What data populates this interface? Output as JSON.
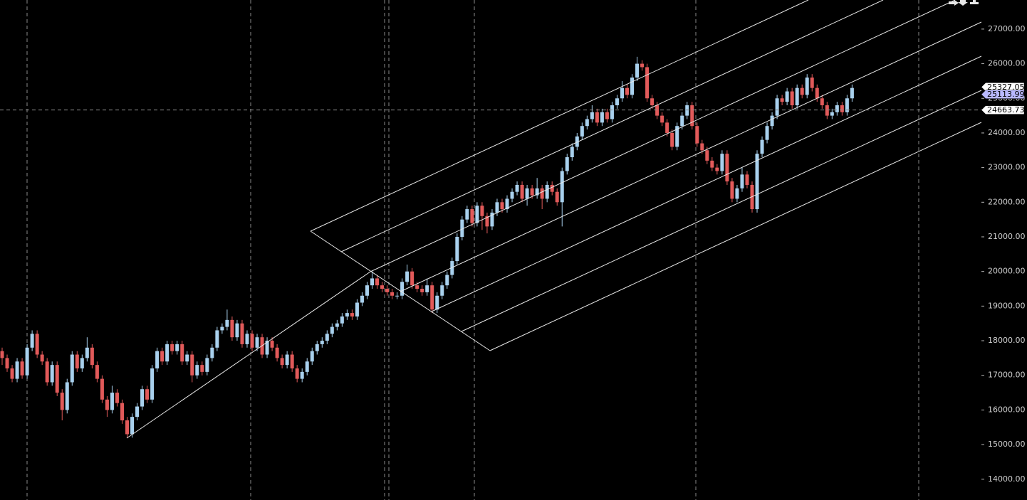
{
  "chart_data": {
    "type": "candlestick",
    "open": [
      17700,
      17500,
      17200,
      16900,
      17400,
      17000,
      17800,
      18200,
      17600,
      17400,
      16800,
      17300,
      16500,
      16000,
      16800,
      17600,
      17200,
      17500,
      17800,
      17300,
      16900,
      16300,
      16000,
      16500,
      16200,
      15700,
      15300,
      15800,
      16100,
      16600,
      16300,
      17200,
      17700,
      17400,
      17900,
      17700,
      17900,
      17400,
      17600,
      17000,
      17300,
      17100,
      17500,
      17800,
      18300,
      18400,
      18600,
      18100,
      18500,
      17900,
      18200,
      17800,
      18100,
      17600,
      18000,
      17800,
      17500,
      17300,
      17600,
      17200,
      16900,
      17100,
      17400,
      17700,
      17900,
      18000,
      18200,
      18400,
      18500,
      18700,
      18800,
      18700,
      19100,
      19300,
      19600,
      19800,
      19600,
      19500,
      19400,
      19300,
      19300,
      19700,
      20000,
      19600,
      19500,
      19400,
      19600,
      18900,
      19300,
      19600,
      19900,
      20300,
      21000,
      21500,
      21800,
      21400,
      21900,
      21600,
      21300,
      21700,
      22000,
      21800,
      22100,
      22300,
      22500,
      22100,
      22400,
      22200,
      22400,
      22100,
      22500,
      22300,
      22000,
      22900,
      23300,
      23600,
      23900,
      24200,
      24400,
      24600,
      24300,
      24600,
      24400,
      24800,
      25000,
      25300,
      25100,
      25600,
      26000,
      25900,
      25000,
      24800,
      24500,
      24300,
      24000,
      23600,
      24200,
      24500,
      24800,
      24200,
      23700,
      23500,
      23200,
      23000,
      22900,
      23400,
      22600,
      22100,
      22400,
      22800,
      22500,
      21800,
      23400,
      23800,
      24200,
      24500,
      25000,
      24900,
      25200,
      24800,
      25300,
      25100,
      25600,
      25300,
      25000,
      24800,
      24500,
      24600,
      24800,
      24600,
      25000
    ],
    "high": [
      17800,
      17600,
      17300,
      17500,
      17500,
      17900,
      18300,
      18300,
      17700,
      17500,
      17400,
      17400,
      16600,
      16900,
      17700,
      17700,
      17600,
      18100,
      17900,
      17400,
      17000,
      16400,
      16700,
      16600,
      16300,
      15800,
      15900,
      16200,
      16700,
      16700,
      17300,
      17800,
      17800,
      18000,
      18000,
      18000,
      18000,
      17700,
      17700,
      17400,
      17400,
      17600,
      17900,
      18400,
      18500,
      18900,
      18700,
      18600,
      18600,
      18300,
      18300,
      18200,
      18200,
      18100,
      18100,
      17900,
      17600,
      17700,
      17700,
      17300,
      17200,
      17500,
      17800,
      18000,
      18100,
      18300,
      18500,
      18600,
      18800,
      18900,
      18900,
      19200,
      19400,
      19700,
      20000,
      19900,
      19700,
      19600,
      19500,
      19400,
      19800,
      20200,
      20100,
      19700,
      19600,
      19800,
      19700,
      19400,
      19700,
      20000,
      20400,
      21100,
      21600,
      21900,
      21900,
      22000,
      22000,
      21700,
      21800,
      22100,
      22100,
      22200,
      22400,
      22600,
      22600,
      22500,
      22500,
      22700,
      22500,
      22600,
      22600,
      22400,
      23000,
      23400,
      23700,
      24000,
      24300,
      24500,
      24800,
      24700,
      24700,
      24700,
      24900,
      25100,
      25500,
      25400,
      25700,
      26200,
      26100,
      26000,
      25100,
      24900,
      24600,
      24400,
      24100,
      24300,
      24600,
      24900,
      24900,
      24300,
      23800,
      23600,
      23300,
      23100,
      23500,
      23500,
      22700,
      22500,
      23000,
      22900,
      22600,
      23500,
      23900,
      24300,
      24600,
      25100,
      25100,
      25300,
      25300,
      25400,
      25400,
      25700,
      25700,
      25400,
      25100,
      24900,
      24700,
      24900,
      24900,
      25100,
      25400
    ],
    "low": [
      17300,
      17100,
      16800,
      16800,
      16900,
      16900,
      17700,
      17500,
      17300,
      16700,
      16700,
      16400,
      15700,
      15900,
      16700,
      17100,
      17100,
      17400,
      17200,
      16800,
      16200,
      15800,
      15900,
      16100,
      15600,
      15200,
      15200,
      15700,
      16000,
      16200,
      16200,
      17100,
      17300,
      17300,
      17600,
      17600,
      17300,
      17300,
      16800,
      16900,
      17000,
      17000,
      17400,
      17700,
      18200,
      18300,
      18000,
      18000,
      17800,
      17800,
      17700,
      17700,
      17500,
      17500,
      17700,
      17400,
      17200,
      17200,
      17100,
      16800,
      16800,
      17000,
      17300,
      17600,
      17800,
      17900,
      18100,
      18300,
      18400,
      18600,
      18600,
      18600,
      19000,
      19200,
      19500,
      19500,
      19400,
      19300,
      19200,
      19200,
      19200,
      19600,
      19500,
      19400,
      19300,
      19300,
      18800,
      18800,
      19200,
      19500,
      19800,
      20200,
      20900,
      21400,
      21300,
      21300,
      21200,
      21100,
      21200,
      21600,
      21700,
      21700,
      22000,
      22200,
      22000,
      21900,
      22100,
      22100,
      21800,
      22000,
      22200,
      21900,
      21300,
      22800,
      23200,
      23500,
      23800,
      24100,
      24300,
      24200,
      24200,
      24300,
      24300,
      24700,
      24900,
      25000,
      25000,
      25500,
      25800,
      24900,
      24700,
      24400,
      24200,
      23900,
      23500,
      23500,
      24100,
      24400,
      24100,
      23600,
      23400,
      23100,
      22900,
      22800,
      22800,
      22500,
      22000,
      22000,
      22300,
      22400,
      21700,
      21700,
      23300,
      23700,
      24100,
      24400,
      24800,
      24800,
      24700,
      24700,
      25000,
      25000,
      25200,
      24900,
      24700,
      24400,
      24400,
      24500,
      24500,
      24500,
      24900
    ],
    "close": [
      17500,
      17200,
      16900,
      17400,
      17000,
      17800,
      18200,
      17600,
      17400,
      16800,
      17300,
      16500,
      16000,
      16800,
      17600,
      17200,
      17500,
      17800,
      17300,
      16900,
      16300,
      16000,
      16500,
      16200,
      15700,
      15300,
      15800,
      16100,
      16600,
      16300,
      17200,
      17700,
      17400,
      17900,
      17700,
      17900,
      17400,
      17600,
      17000,
      17300,
      17100,
      17500,
      17800,
      18300,
      18400,
      18600,
      18100,
      18500,
      17900,
      18200,
      17800,
      18100,
      17600,
      18000,
      17800,
      17500,
      17300,
      17600,
      17200,
      16900,
      17100,
      17400,
      17700,
      17900,
      18000,
      18200,
      18400,
      18500,
      18700,
      18800,
      18700,
      19100,
      19300,
      19600,
      19800,
      19600,
      19500,
      19400,
      19300,
      19300,
      19700,
      20000,
      19600,
      19500,
      19400,
      19600,
      18900,
      19300,
      19600,
      19900,
      20300,
      21000,
      21500,
      21800,
      21400,
      21900,
      21600,
      21300,
      21700,
      22000,
      21800,
      22100,
      22300,
      22500,
      22100,
      22400,
      22200,
      22400,
      22100,
      22500,
      22300,
      22000,
      22900,
      23300,
      23600,
      23900,
      24200,
      24400,
      24600,
      24300,
      24600,
      24400,
      24800,
      25000,
      25300,
      25100,
      25600,
      26000,
      25900,
      25000,
      24800,
      24500,
      24300,
      24000,
      23600,
      24200,
      24500,
      24800,
      24200,
      23700,
      23500,
      23200,
      23000,
      22900,
      23400,
      22600,
      22100,
      22400,
      22800,
      22500,
      21800,
      23400,
      23800,
      24200,
      24500,
      25000,
      24900,
      25200,
      24800,
      25300,
      25100,
      25600,
      25300,
      25000,
      24800,
      24500,
      24600,
      24800,
      24600,
      25000,
      25300
    ],
    "up_color": "#a9d1ee",
    "down_color": "#e25a5a",
    "ylim": [
      13400,
      27840
    ],
    "yticks": [
      {
        "value": 27000,
        "label": "27000.00"
      },
      {
        "value": 26000,
        "label": "26000.00"
      },
      {
        "value": 25000,
        "label": "25000.00"
      },
      {
        "value": 24000,
        "label": "24000.00"
      },
      {
        "value": 23000,
        "label": "23000.00"
      },
      {
        "value": 22000,
        "label": "22000.00"
      },
      {
        "value": 21000,
        "label": "21000.00"
      },
      {
        "value": 20000,
        "label": "20000.00"
      },
      {
        "value": 19000,
        "label": "19000.00"
      },
      {
        "value": 18000,
        "label": "18000.00"
      },
      {
        "value": 17000,
        "label": "17000.00"
      },
      {
        "value": 16000,
        "label": "16000.00"
      },
      {
        "value": 15000,
        "label": "15000.00"
      },
      {
        "value": 14000,
        "label": "14000.00"
      }
    ],
    "price_markers": [
      {
        "value": 25327.05,
        "color": "#ffffff"
      },
      {
        "value": 25113.99,
        "color": "#b9b9ff"
      },
      {
        "value": 24663.73,
        "color": "#ffffff"
      }
    ]
  }
}
